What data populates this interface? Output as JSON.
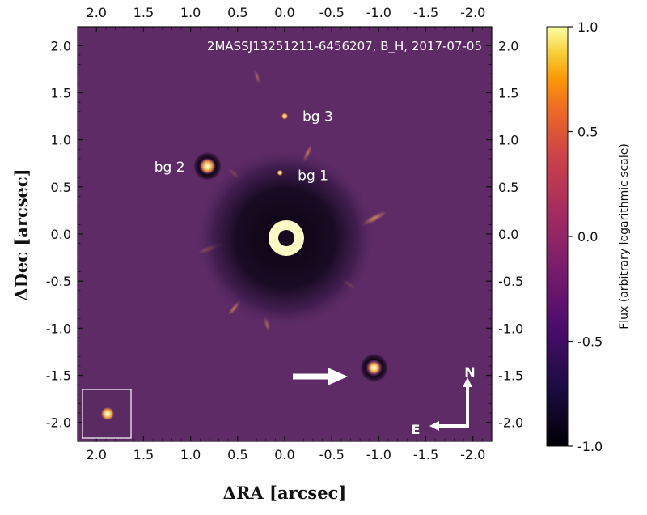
{
  "image": {
    "title": "2MASSJ13251211-6456207, B_H, 2017-07-05",
    "annotations": [
      {
        "label": "bg 3",
        "ra": 0.0,
        "dec": 1.25
      },
      {
        "label": "bg 2",
        "ra": 0.82,
        "dec": 0.72
      },
      {
        "label": "bg 1",
        "ra": 0.05,
        "dec": 0.65
      }
    ],
    "companion": {
      "ra": -0.95,
      "dec": -1.42
    },
    "compass": {
      "north": "N",
      "east": "E"
    },
    "xlabel": "ΔRA [arcsec]",
    "ylabel": "ΔDec [arcsec]",
    "xlim": [
      2.2,
      -2.2
    ],
    "ylim": [
      -2.2,
      2.2
    ],
    "x_ticks": [
      "2.0",
      "1.5",
      "1.0",
      "0.5",
      "0.0",
      "-0.5",
      "-1.0",
      "-1.5",
      "-2.0"
    ],
    "y_ticks": [
      "2.0",
      "1.5",
      "1.0",
      "0.5",
      "0.0",
      "-0.5",
      "-1.0",
      "-1.5",
      "-2.0"
    ],
    "colormap": "inferno",
    "colors": {
      "background": "#5e2b66",
      "bright": "#fffac4",
      "companion": "#fcf2a8"
    }
  },
  "colorbar": {
    "label": "Flux (arbitrary logarithmic scale)",
    "ticks": [
      "1.0",
      "0.5",
      "0.0",
      "-0.5",
      "-1.0"
    ],
    "range": [
      -1.0,
      1.0
    ]
  }
}
